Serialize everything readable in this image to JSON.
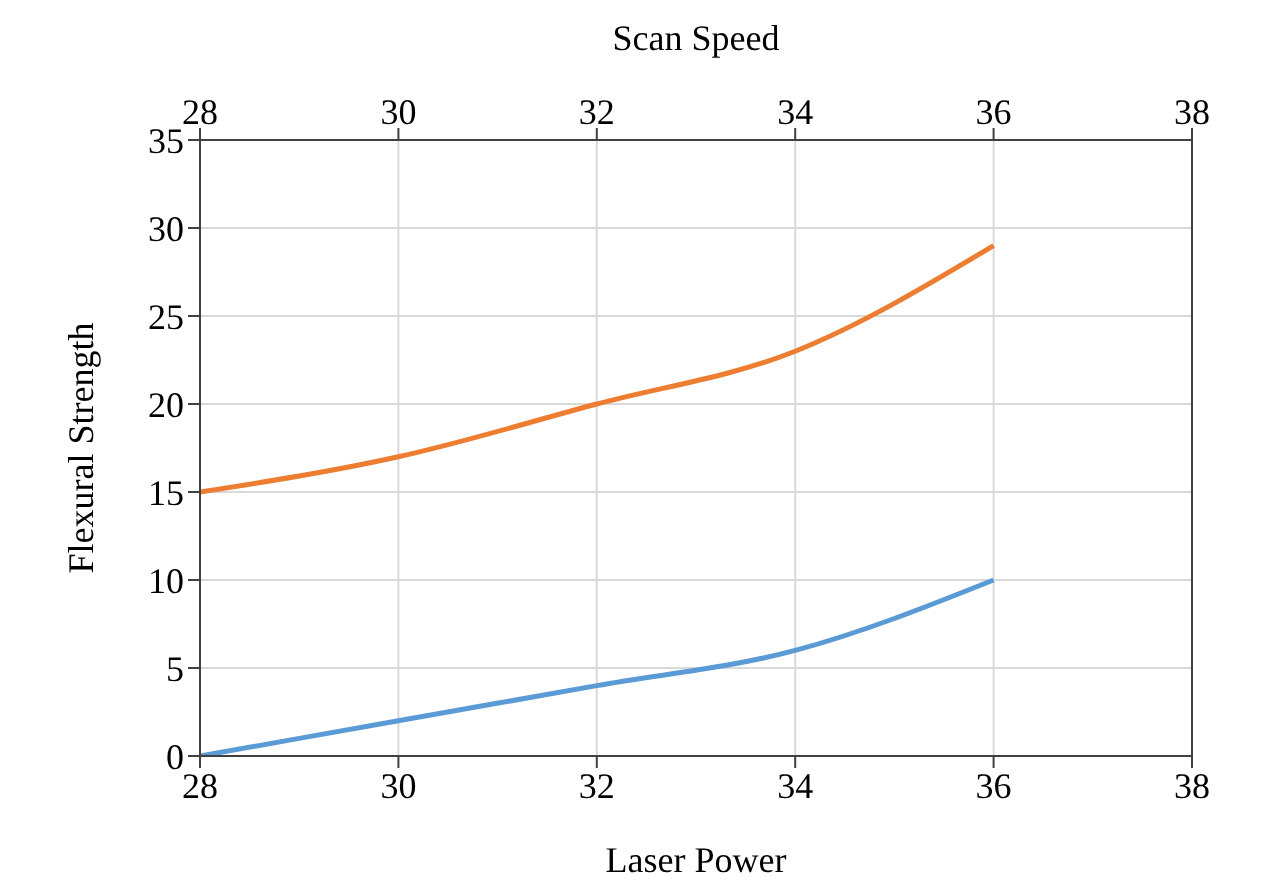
{
  "chart_data": {
    "type": "line",
    "xlabel": "Laser Power",
    "x2label": "Scan Speed",
    "ylabel": "Flexural Strength",
    "xlim": [
      28,
      38
    ],
    "xticks": [
      28,
      30,
      32,
      34,
      36,
      38
    ],
    "x2lim": [
      28,
      38
    ],
    "x2ticks": [
      28,
      30,
      32,
      34,
      36,
      38
    ],
    "ylim": [
      0,
      35
    ],
    "yticks": [
      0,
      5,
      10,
      15,
      20,
      25,
      30,
      35
    ],
    "grid": true,
    "marker": "none",
    "line_style": "solid",
    "series": [
      {
        "color": "#ed7d31",
        "x": [
          28,
          30,
          32,
          34,
          36
        ],
        "values": [
          15,
          17,
          20,
          23,
          29
        ]
      },
      {
        "color": "#5b9bd5",
        "x": [
          28,
          30,
          32,
          34,
          36
        ],
        "values": [
          0,
          2,
          4,
          6,
          10
        ]
      }
    ]
  }
}
